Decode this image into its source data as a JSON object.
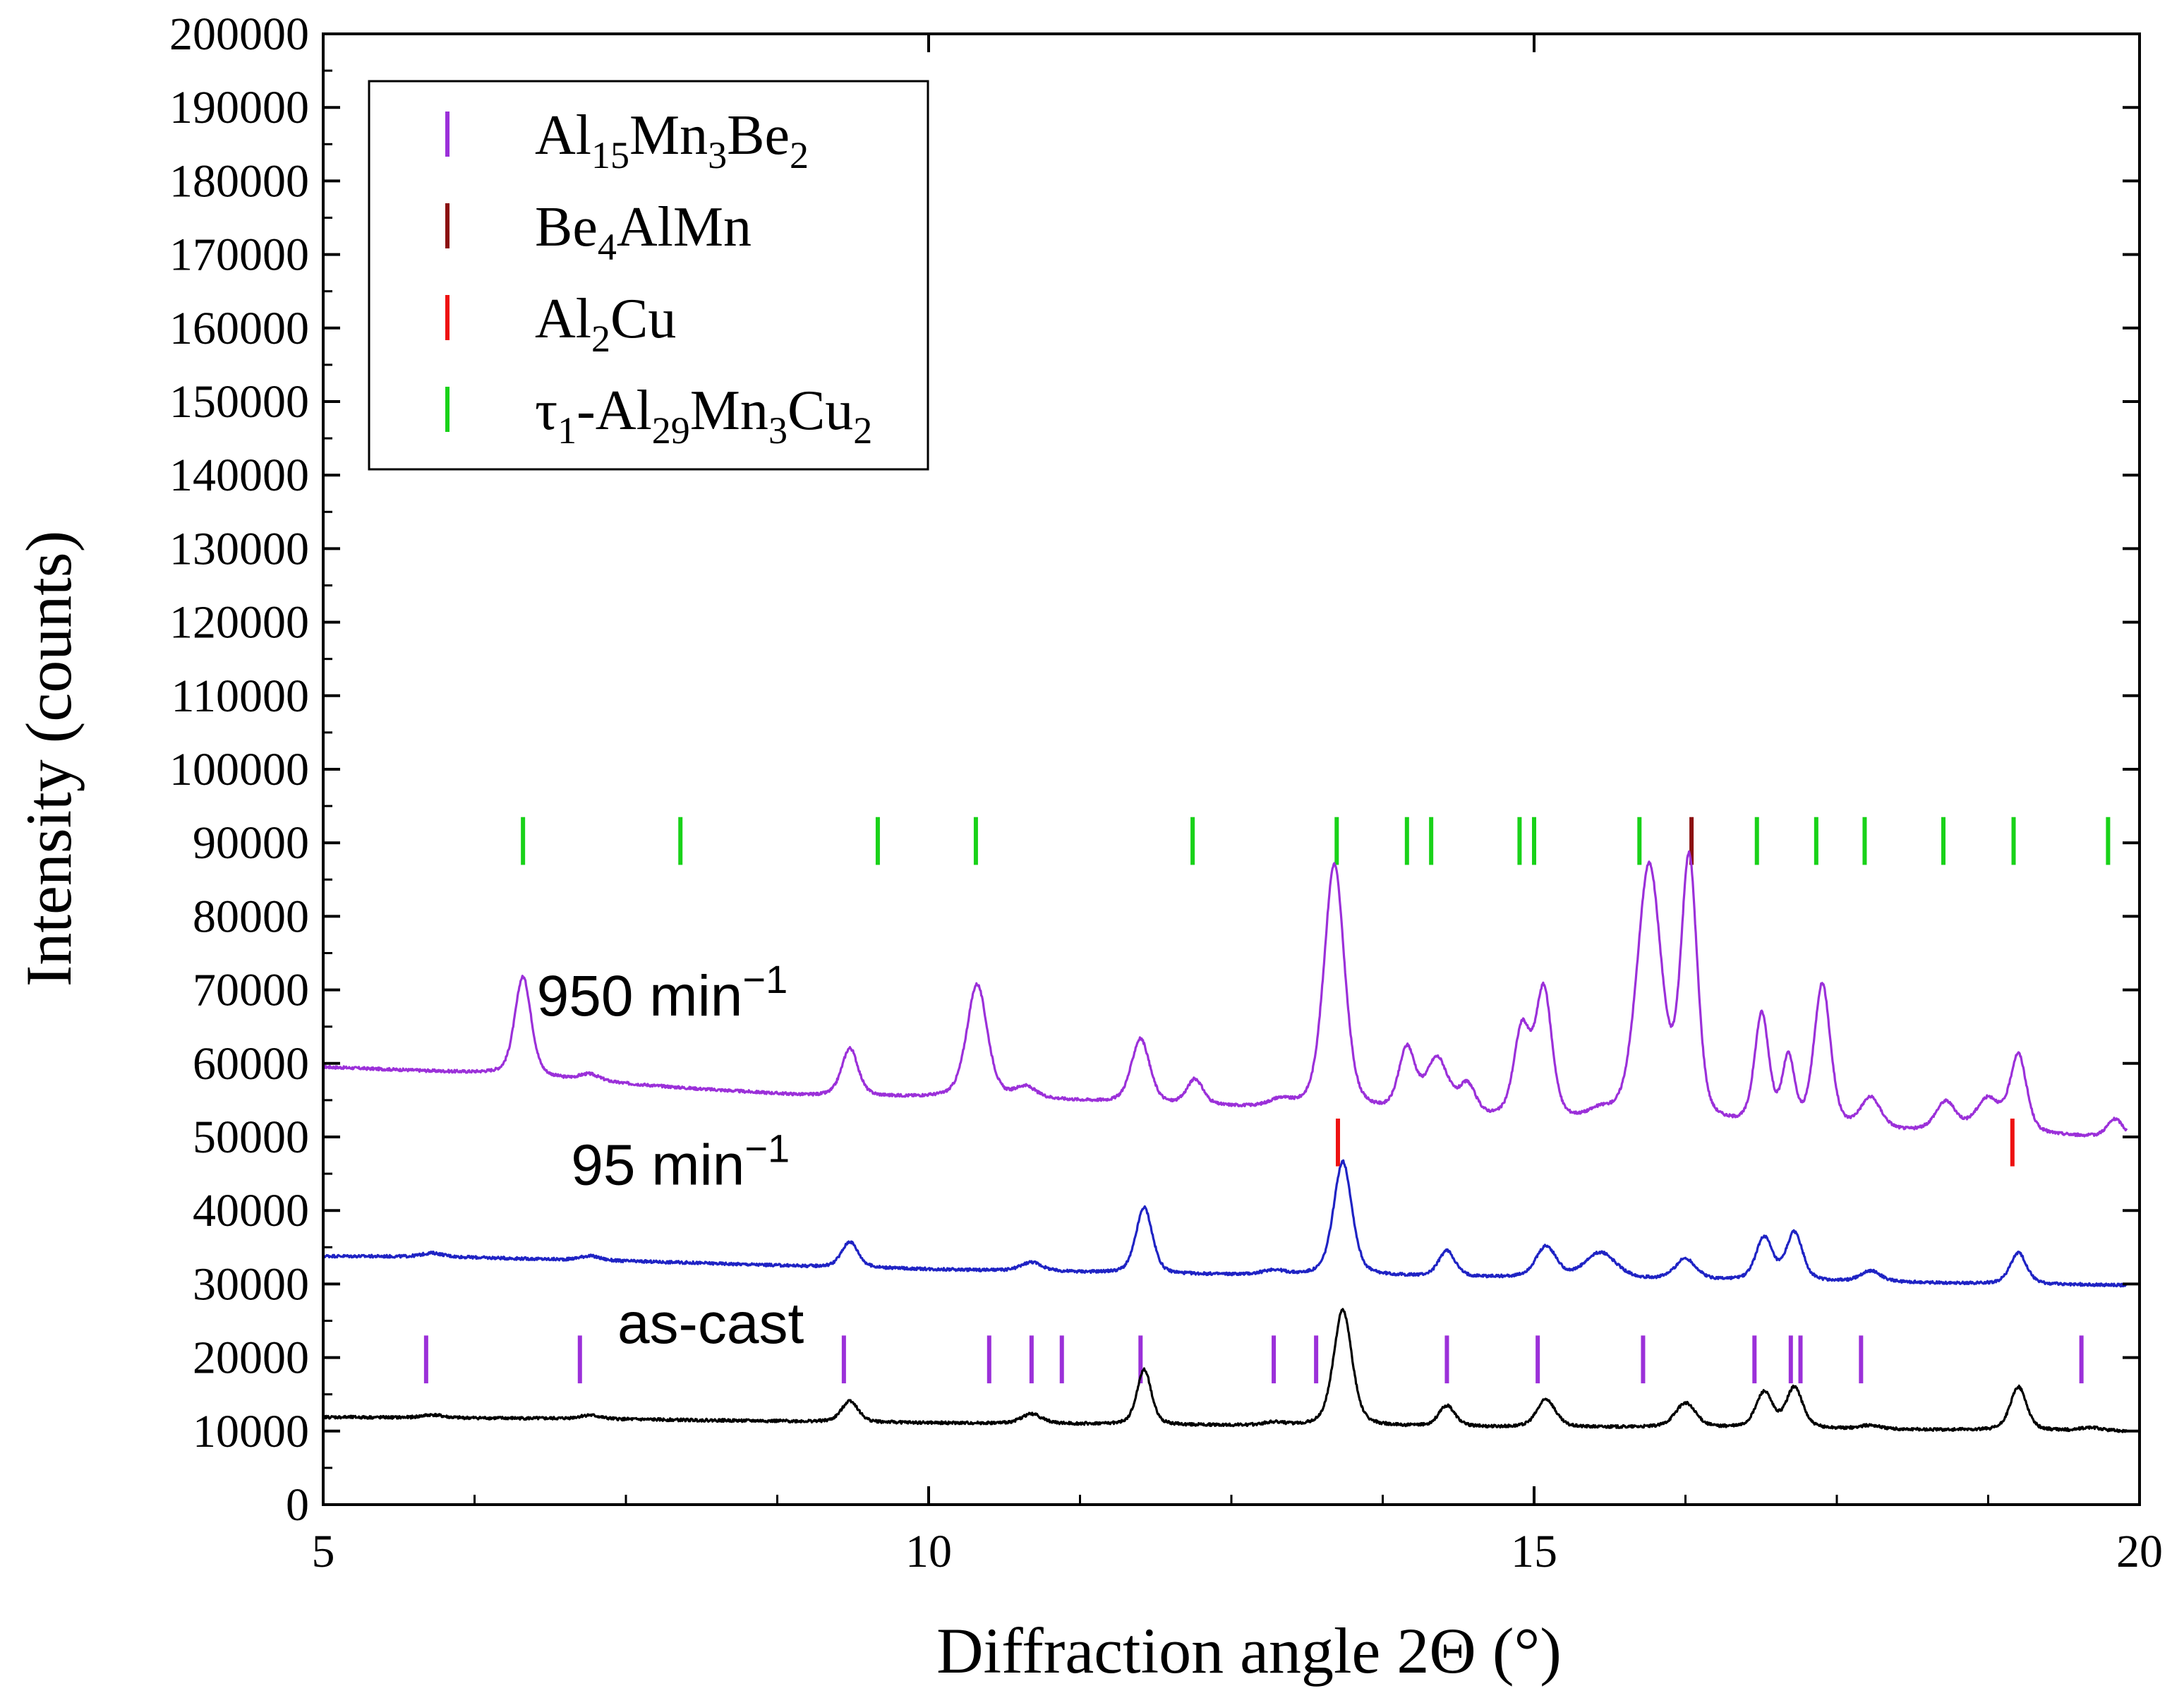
{
  "chart_data": {
    "type": "line",
    "xlabel": "Diffraction angle 2Θ (°)",
    "ylabel": "Intensity (counts)",
    "xlim": [
      5,
      20
    ],
    "ylim": [
      0,
      200000
    ],
    "x_ticks": [
      5,
      10,
      15,
      20
    ],
    "x_minor_step": 1.25,
    "y_ticks": [
      0,
      10000,
      20000,
      30000,
      40000,
      50000,
      60000,
      70000,
      80000,
      90000,
      100000,
      110000,
      120000,
      130000,
      140000,
      150000,
      160000,
      170000,
      180000,
      190000,
      200000
    ],
    "grid": false,
    "legend_position": "top-left",
    "legend": [
      {
        "label": "Al15Mn3Be2",
        "parts": [
          [
            "Al",
            ""
          ],
          [
            "15",
            "sub"
          ],
          [
            "Mn",
            ""
          ],
          [
            "3",
            "sub"
          ],
          [
            "Be",
            ""
          ],
          [
            "2",
            "sub"
          ]
        ],
        "color": "#9B30D9"
      },
      {
        "label": "Be4AlMn",
        "parts": [
          [
            "Be",
            ""
          ],
          [
            "4",
            "sub"
          ],
          [
            "AlMn",
            ""
          ]
        ],
        "color": "#8B1010"
      },
      {
        "label": "Al2Cu",
        "parts": [
          [
            "Al",
            ""
          ],
          [
            "2",
            "sub"
          ],
          [
            "Cu",
            ""
          ]
        ],
        "color": "#EE1111"
      },
      {
        "label": "τ1-Al29Mn3Cu2",
        "parts": [
          [
            "τ",
            ""
          ],
          [
            "1",
            "sub"
          ],
          [
            "-Al",
            ""
          ],
          [
            "29",
            "sub"
          ],
          [
            "Mn",
            ""
          ],
          [
            "3",
            "sub"
          ],
          [
            "Cu",
            ""
          ],
          [
            "2",
            "sub"
          ]
        ],
        "color": "#19D219"
      }
    ],
    "series": [
      {
        "name": "950 min⁻¹",
        "label_main": "950 min",
        "label_sup": "−1",
        "label_pos": [
          7.8,
          66500
        ],
        "color": "#9B30D9",
        "baseline": [
          [
            5,
            59500
          ],
          [
            6.4,
            58600
          ],
          [
            7,
            57800
          ],
          [
            8,
            56600
          ],
          [
            9,
            55600
          ],
          [
            10,
            55300
          ],
          [
            11,
            55000
          ],
          [
            12,
            54200
          ],
          [
            13,
            53700
          ],
          [
            14,
            52800
          ],
          [
            15,
            51800
          ],
          [
            16,
            51200
          ],
          [
            17,
            51000
          ],
          [
            18,
            50600
          ],
          [
            19,
            50300
          ],
          [
            20,
            49700
          ]
        ],
        "peaks": [
          [
            6.65,
            13500,
            0.08
          ],
          [
            7.2,
            900,
            0.1
          ],
          [
            9.35,
            6500,
            0.08
          ],
          [
            10.4,
            15500,
            0.1
          ],
          [
            10.8,
            1500,
            0.1
          ],
          [
            11.75,
            8800,
            0.09
          ],
          [
            12.2,
            3500,
            0.08
          ],
          [
            12.9,
            900,
            0.1
          ],
          [
            13.35,
            33500,
            0.1
          ],
          [
            13.95,
            8500,
            0.08
          ],
          [
            14.2,
            7500,
            0.11
          ],
          [
            14.45,
            4000,
            0.08
          ],
          [
            14.9,
            12000,
            0.08
          ],
          [
            15.08,
            17500,
            0.08
          ],
          [
            15.55,
            1200,
            0.12
          ],
          [
            15.95,
            35000,
            0.12
          ],
          [
            16.28,
            35500,
            0.08
          ],
          [
            16.88,
            15000,
            0.07
          ],
          [
            17.1,
            9000,
            0.06
          ],
          [
            17.38,
            19500,
            0.08
          ],
          [
            17.78,
            4200,
            0.1
          ],
          [
            18.4,
            4000,
            0.1
          ],
          [
            18.75,
            4500,
            0.12
          ],
          [
            19.0,
            10500,
            0.08
          ],
          [
            19.8,
            2500,
            0.08
          ]
        ]
      },
      {
        "name": "95 min⁻¹",
        "label_main": "95 min",
        "label_sup": "−1",
        "label_pos": [
          7.95,
          43500
        ],
        "color": "#1F23C4",
        "baseline": [
          [
            5,
            33800
          ],
          [
            6,
            33700
          ],
          [
            7,
            33300
          ],
          [
            8,
            32900
          ],
          [
            9,
            32400
          ],
          [
            10,
            32000
          ],
          [
            11,
            31700
          ],
          [
            12,
            31300
          ],
          [
            13,
            31200
          ],
          [
            14,
            31000
          ],
          [
            15,
            30800
          ],
          [
            16,
            30600
          ],
          [
            17,
            30400
          ],
          [
            18,
            30200
          ],
          [
            19,
            30000
          ],
          [
            20,
            29800
          ]
        ],
        "peaks": [
          [
            5.9,
            500,
            0.1
          ],
          [
            7.2,
            600,
            0.1
          ],
          [
            9.35,
            3500,
            0.08
          ],
          [
            10.85,
            1200,
            0.1
          ],
          [
            11.78,
            9000,
            0.08
          ],
          [
            12.85,
            600,
            0.1
          ],
          [
            13.42,
            15500,
            0.09
          ],
          [
            14.28,
            3500,
            0.08
          ],
          [
            15.1,
            4200,
            0.1
          ],
          [
            15.55,
            3500,
            0.15
          ],
          [
            16.25,
            2800,
            0.1
          ],
          [
            16.9,
            5800,
            0.08
          ],
          [
            17.15,
            6500,
            0.08
          ],
          [
            17.78,
            1500,
            0.1
          ],
          [
            19.0,
            4200,
            0.08
          ]
        ]
      },
      {
        "name": "as-cast",
        "label_main": "as-cast",
        "label_sup": "",
        "label_pos": [
          8.2,
          22000
        ],
        "color": "#000000",
        "baseline": [
          [
            5,
            11900
          ],
          [
            7,
            11700
          ],
          [
            9,
            11300
          ],
          [
            10,
            11100
          ],
          [
            11,
            11000
          ],
          [
            12,
            10800
          ],
          [
            13,
            10700
          ],
          [
            14,
            10600
          ],
          [
            15,
            10500
          ],
          [
            16,
            10500
          ],
          [
            17,
            10400
          ],
          [
            18,
            10200
          ],
          [
            19,
            10100
          ],
          [
            20,
            10000
          ]
        ],
        "peaks": [
          [
            5.9,
            400,
            0.1
          ],
          [
            7.2,
            500,
            0.1
          ],
          [
            9.35,
            2900,
            0.08
          ],
          [
            10.85,
            1300,
            0.1
          ],
          [
            11.78,
            7500,
            0.07
          ],
          [
            12.85,
            400,
            0.1
          ],
          [
            13.42,
            15800,
            0.09
          ],
          [
            14.28,
            2800,
            0.08
          ],
          [
            15.1,
            3800,
            0.09
          ],
          [
            16.25,
            3300,
            0.1
          ],
          [
            16.9,
            4800,
            0.08
          ],
          [
            17.15,
            5500,
            0.08
          ],
          [
            17.78,
            500,
            0.1
          ],
          [
            19.0,
            5900,
            0.08
          ],
          [
            19.6,
            400,
            0.1
          ]
        ]
      }
    ],
    "reference_markers": [
      {
        "phase": "τ1-Al29Mn3Cu2",
        "color": "#19D219",
        "y_range": [
          87000,
          93500
        ],
        "x": [
          6.65,
          7.95,
          9.58,
          10.39,
          12.18,
          13.37,
          13.95,
          14.15,
          14.88,
          15.0,
          15.87,
          16.84,
          17.33,
          17.73,
          18.38,
          18.96,
          19.74
        ]
      },
      {
        "phase": "Be4AlMn",
        "color": "#8B1010",
        "y_range": [
          87000,
          93500
        ],
        "x": [
          16.3
        ]
      },
      {
        "phase": "Al2Cu",
        "color": "#EE1111",
        "y_range": [
          46000,
          52500
        ],
        "x": [
          13.38,
          18.95
        ]
      },
      {
        "phase": "Al15Mn3Be2",
        "color": "#9B30D9",
        "y_range": [
          16500,
          23000
        ],
        "x": [
          5.85,
          7.12,
          9.3,
          10.5,
          10.85,
          11.1,
          11.75,
          12.85,
          13.2,
          14.28,
          15.03,
          15.9,
          16.82,
          17.12,
          17.2,
          17.7,
          19.52
        ]
      }
    ]
  }
}
